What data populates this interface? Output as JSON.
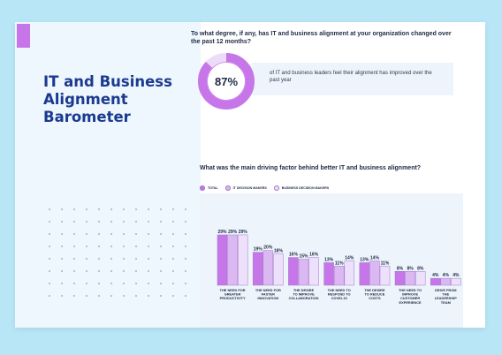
{
  "panel": {
    "title": "IT and Business Alignment Barometer"
  },
  "question1": "To what degree, if any, has IT and business alignment at your organization changed over the past 12 months?",
  "stat": {
    "value": 87,
    "label": "87%",
    "text": "of IT and business leaders feel their alignment has improved over the past year"
  },
  "question2": "What was the main driving factor behind better IT and business alignment?",
  "colors": {
    "accent": "#c676e8",
    "total": "#c676e8",
    "it": "#dbb8f1",
    "business": "#ede0fa",
    "donut_track": "#ecdcf8",
    "title": "#1b3a8f",
    "background": "#b8e6f6"
  },
  "chart_data": {
    "type": "bar",
    "categories": [
      "THE NEED FOR GREATER PRODUCTIVITY",
      "THE NEED FOR FASTER INNOVATION",
      "THE DESIRE TO IMPROVE COLLABORATION",
      "THE NEED TO RESPOND TO COVID-19",
      "THE DESIRE TO REDUCE COSTS",
      "THE NEED TO IMPROVE CUSTOMER EXPERIENCE",
      "DRIVE FROM THE LEADERSHIP TEAM"
    ],
    "series": [
      {
        "name": "TOTAL",
        "values": [
          29,
          19,
          16,
          13,
          13,
          8,
          4
        ],
        "labels": [
          "29%",
          "19%",
          "16%",
          "13%",
          "13%",
          "8%",
          "4%"
        ]
      },
      {
        "name": "IT DECISION MAKERS",
        "values": [
          29,
          20,
          15,
          11,
          14,
          8,
          4
        ],
        "labels": [
          "29%",
          "20%",
          "15%",
          "11%",
          "14%",
          "8%",
          "4%"
        ]
      },
      {
        "name": "BUSINESS DECISION MAKERS",
        "values": [
          29,
          18,
          16,
          14,
          11,
          8,
          4
        ],
        "labels": [
          "29%",
          "18%",
          "16%",
          "14%",
          "11%",
          "8%",
          "4%"
        ]
      }
    ],
    "ylim": [
      0,
      30
    ],
    "grid": false,
    "legend": "top-left"
  }
}
